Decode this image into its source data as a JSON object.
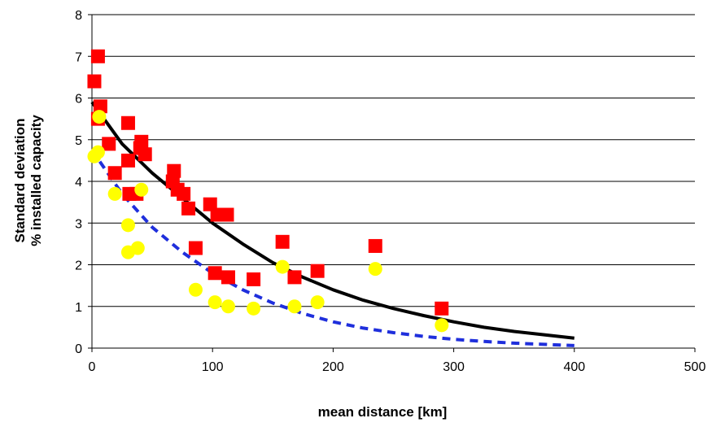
{
  "chart_data": {
    "type": "scatter",
    "xlabel": "mean distance [km]",
    "ylabel_lines": [
      "Standard deviation",
      "% installed capacity"
    ],
    "xlim": [
      0,
      500
    ],
    "ylim": [
      0,
      8
    ],
    "x_ticks": [
      0,
      100,
      200,
      300,
      400,
      500
    ],
    "y_ticks": [
      0,
      1,
      2,
      3,
      4,
      5,
      6,
      7,
      8
    ],
    "grid": "horizontal",
    "legend": "none",
    "colors": {
      "square_markers": "#ff0000",
      "circle_markers": "#ffff00",
      "solid_curve": "#000000",
      "dashed_curve": "#1f2fdc",
      "grid": "#000000"
    },
    "series": [
      {
        "marker": "square",
        "color": "#ff0000",
        "points": [
          [
            2,
            6.4
          ],
          [
            5,
            7.0
          ],
          [
            5,
            5.5
          ],
          [
            7,
            5.8
          ],
          [
            14,
            4.9
          ],
          [
            19,
            4.2
          ],
          [
            30,
            5.4
          ],
          [
            30,
            4.5
          ],
          [
            31,
            3.7
          ],
          [
            37,
            3.7
          ],
          [
            40,
            4.8
          ],
          [
            41,
            4.95
          ],
          [
            44,
            4.65
          ],
          [
            67,
            4.0
          ],
          [
            68,
            4.25
          ],
          [
            71,
            3.8
          ],
          [
            76,
            3.7
          ],
          [
            80,
            3.35
          ],
          [
            86,
            2.4
          ],
          [
            98,
            3.45
          ],
          [
            102,
            1.8
          ],
          [
            104,
            3.2
          ],
          [
            112,
            3.2
          ],
          [
            113,
            1.7
          ],
          [
            134,
            1.65
          ],
          [
            158,
            2.55
          ],
          [
            168,
            1.7
          ],
          [
            187,
            1.85
          ],
          [
            235,
            2.45
          ],
          [
            290,
            0.95
          ]
        ]
      },
      {
        "marker": "circle",
        "color": "#ffff00",
        "points": [
          [
            2,
            4.6
          ],
          [
            5,
            4.7
          ],
          [
            6,
            5.55
          ],
          [
            19,
            3.7
          ],
          [
            30,
            2.95
          ],
          [
            30,
            2.3
          ],
          [
            38,
            2.4
          ],
          [
            41,
            3.8
          ],
          [
            86,
            1.4
          ],
          [
            102,
            1.1
          ],
          [
            113,
            1.0
          ],
          [
            134,
            0.95
          ],
          [
            158,
            1.95
          ],
          [
            168,
            1.0
          ],
          [
            187,
            1.1
          ],
          [
            235,
            1.9
          ],
          [
            290,
            0.55
          ]
        ]
      },
      {
        "style": "solid-line",
        "color": "#000000",
        "points": [
          [
            0,
            5.9
          ],
          [
            25,
            4.9
          ],
          [
            50,
            4.2
          ],
          [
            75,
            3.6
          ],
          [
            100,
            3.0
          ],
          [
            125,
            2.5
          ],
          [
            150,
            2.05
          ],
          [
            175,
            1.7
          ],
          [
            200,
            1.4
          ],
          [
            225,
            1.15
          ],
          [
            250,
            0.95
          ],
          [
            275,
            0.78
          ],
          [
            300,
            0.63
          ],
          [
            325,
            0.5
          ],
          [
            350,
            0.4
          ],
          [
            375,
            0.32
          ],
          [
            400,
            0.24
          ]
        ]
      },
      {
        "style": "dashed-line",
        "color": "#1f2fdc",
        "points": [
          [
            0,
            4.75
          ],
          [
            25,
            3.7
          ],
          [
            50,
            2.9
          ],
          [
            75,
            2.3
          ],
          [
            100,
            1.8
          ],
          [
            125,
            1.4
          ],
          [
            150,
            1.08
          ],
          [
            175,
            0.83
          ],
          [
            200,
            0.63
          ],
          [
            225,
            0.48
          ],
          [
            250,
            0.37
          ],
          [
            275,
            0.28
          ],
          [
            300,
            0.21
          ],
          [
            325,
            0.16
          ],
          [
            350,
            0.12
          ],
          [
            375,
            0.09
          ],
          [
            400,
            0.06
          ]
        ]
      }
    ]
  }
}
